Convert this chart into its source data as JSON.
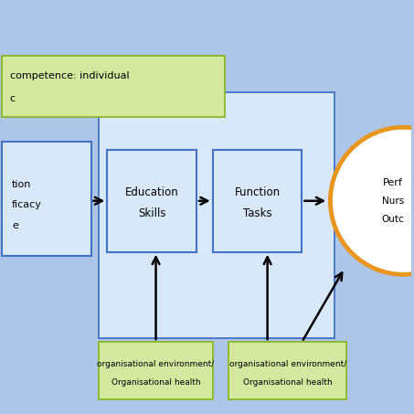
{
  "bg_color": "#adc6e8",
  "fig_bg": "#adc6e8",
  "box_bg": "#d8e8f8",
  "box_border": "#4472c4",
  "green_bg": "#d4e8a0",
  "green_border": "#8ab828",
  "circle_bg": "white",
  "circle_border": "#e8961e",
  "title_text1": "competence: individual",
  "title_text2": "c",
  "box1_lines": [
    "tion",
    "ficacy",
    "e"
  ],
  "box2_lines": [
    "Education",
    "Skills"
  ],
  "box3_lines": [
    "Function",
    "Tasks"
  ],
  "circle_lines": [
    "Perf",
    "Nurs",
    "Outc"
  ],
  "green1_lines": [
    "organisational environment/",
    "Organisational health"
  ],
  "green2_lines": [
    "organisational environment/",
    "Organisational health"
  ],
  "fontsize_main": 8,
  "fontsize_small": 6.5
}
